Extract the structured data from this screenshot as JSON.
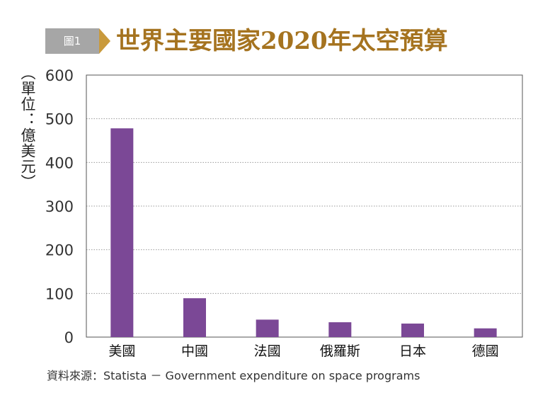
{
  "header": {
    "figure_label": "圖1",
    "title": "世界主要國家2020年太空預算"
  },
  "source": "資料來源：Statista － Government expenditure on space programs",
  "colors": {
    "bar": "#7b4896",
    "title": "#a5731f",
    "badge": "#a6a6a6",
    "badge_arrow": "#c99a3c"
  },
  "chart_data": {
    "type": "bar",
    "title": "世界主要國家2020年太空預算",
    "ylabel": "（單位：億美元）",
    "xlabel": "",
    "categories": [
      "美國",
      "中國",
      "法國",
      "俄羅斯",
      "日本",
      "德國"
    ],
    "values": [
      478,
      89,
      40,
      34,
      31,
      20
    ],
    "ylim": [
      0,
      600
    ],
    "yticks": [
      0,
      100,
      200,
      300,
      400,
      500,
      600
    ],
    "grid": true
  }
}
